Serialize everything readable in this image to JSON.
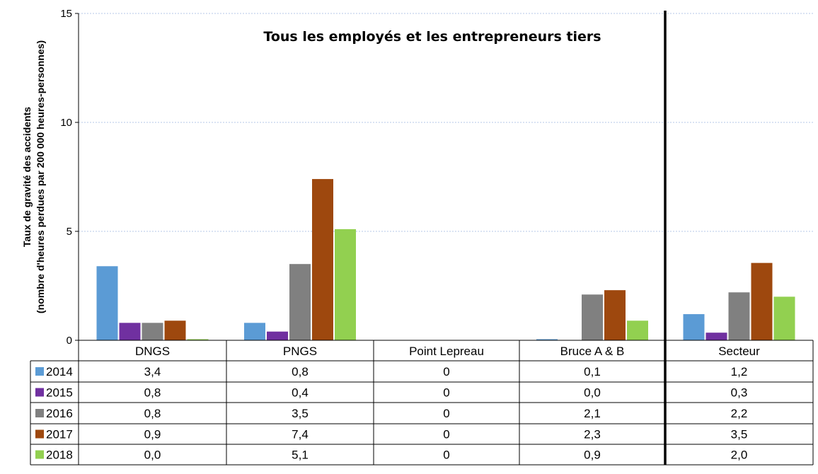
{
  "chart_data": {
    "type": "bar",
    "title": "Tous les employés et les entrepreneurs tiers",
    "ylabel_line1": "Taux de gravité des accidents",
    "ylabel_line2": "(nombre d'heures perdues par 200 000 heures-personnes)",
    "ylim": [
      0,
      15
    ],
    "yticks": [
      "0",
      "5",
      "10",
      "15"
    ],
    "grid": true,
    "legend": "in-table-left",
    "categories": [
      "DNGS",
      "PNGS",
      "Point Lepreau",
      "Bruce A & B",
      "Secteur"
    ],
    "series": [
      {
        "name": "2014",
        "color": "#5b9bd5",
        "values": [
          3.4,
          0.8,
          0,
          0.05,
          1.2
        ],
        "labels": [
          "3,4",
          "0,8",
          "0",
          "0,1",
          "1,2"
        ]
      },
      {
        "name": "2015",
        "color": "#7030a0",
        "values": [
          0.8,
          0.4,
          0,
          0.0,
          0.35
        ],
        "labels": [
          "0,8",
          "0,4",
          "0",
          "0,0",
          "0,3"
        ]
      },
      {
        "name": "2016",
        "color": "#808080",
        "values": [
          0.8,
          3.5,
          0,
          2.1,
          2.2
        ],
        "labels": [
          "0,8",
          "3,5",
          "0",
          "2,1",
          "2,2"
        ]
      },
      {
        "name": "2017",
        "color": "#9e480e",
        "values": [
          0.9,
          7.4,
          0,
          2.3,
          3.55
        ],
        "labels": [
          "0,9",
          "7,4",
          "0",
          "2,3",
          "3,5"
        ]
      },
      {
        "name": "2018",
        "color": "#92d050",
        "values": [
          0.05,
          5.1,
          0,
          0.9,
          2.0
        ],
        "labels": [
          "0,0",
          "5,1",
          "0",
          "0,9",
          "2,0"
        ]
      }
    ]
  }
}
